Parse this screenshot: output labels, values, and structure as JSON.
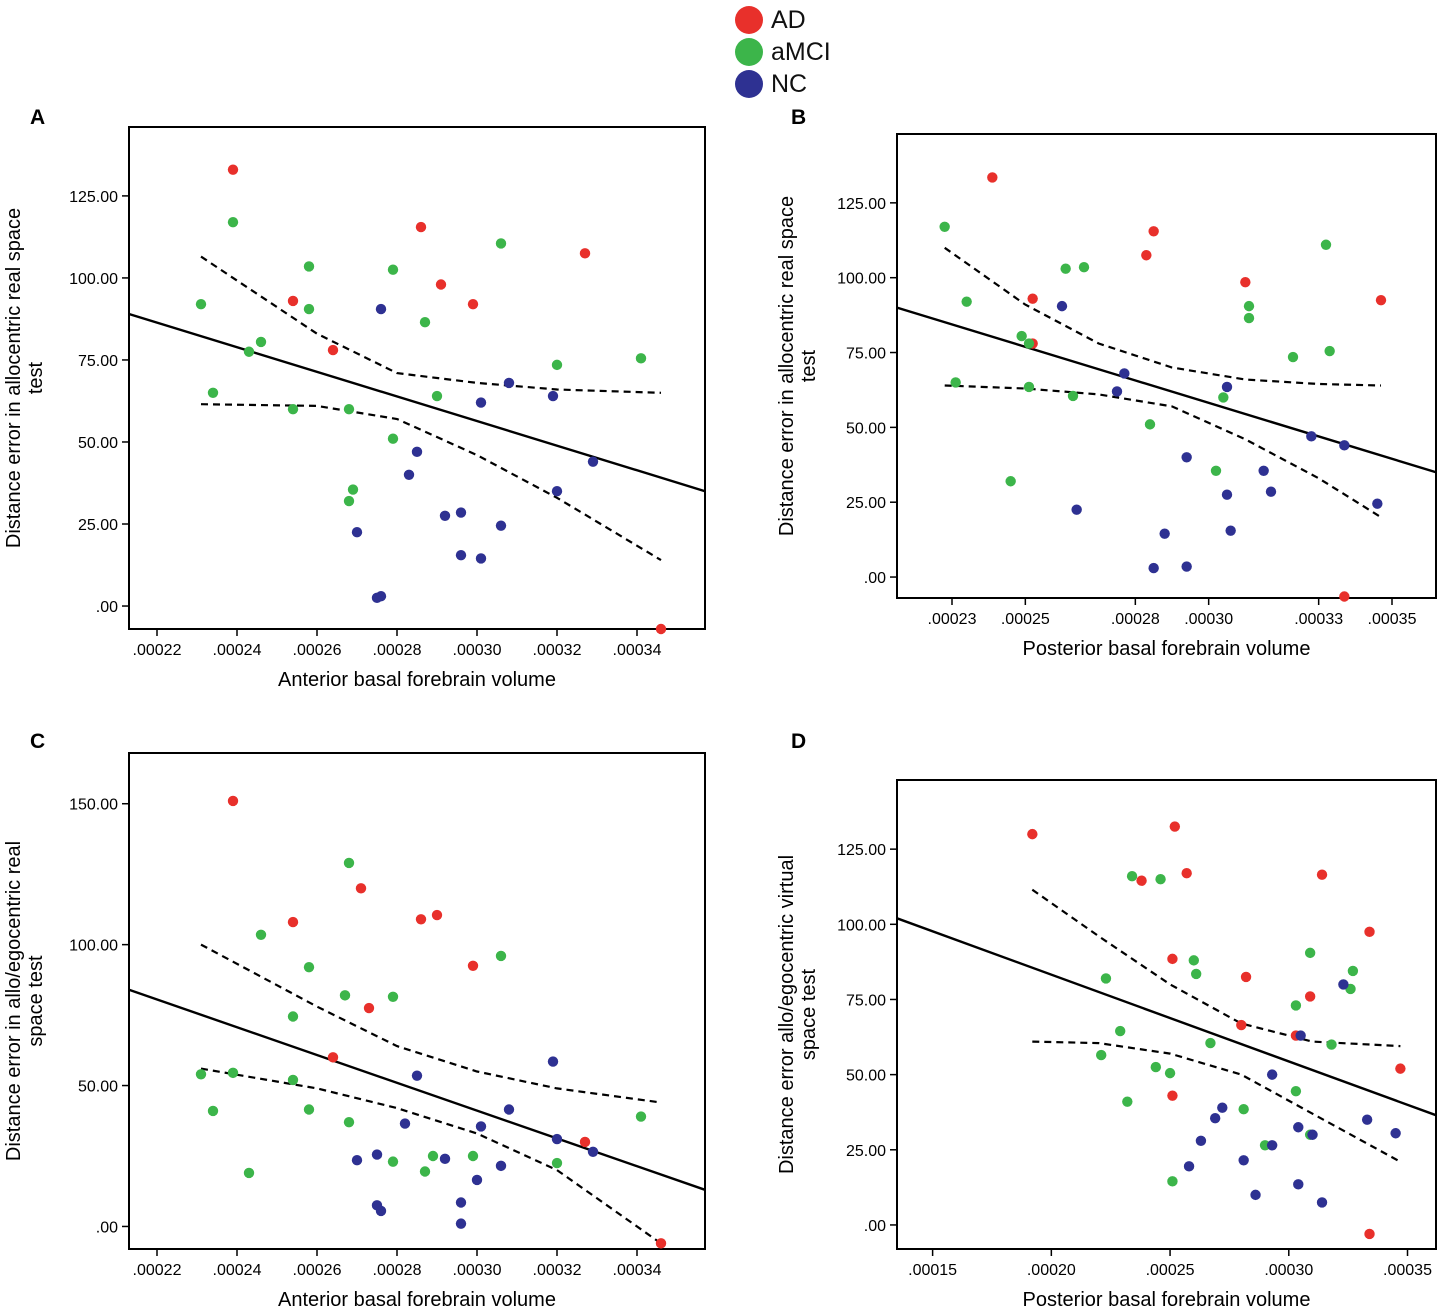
{
  "legend": {
    "items": [
      {
        "label": "AD",
        "color": "#e8302b"
      },
      {
        "label": "aMCI",
        "color": "#3cb54a"
      },
      {
        "label": "NC",
        "color": "#2e3192"
      }
    ]
  },
  "chart_data": [
    {
      "panel": "A",
      "type": "scatter",
      "xlabel": "Anterior basal forebrain volume",
      "ylabel": "Distance error in allocentric real space test",
      "xlim": [
        0.000213,
        0.000357
      ],
      "ylim": [
        -7,
        146
      ],
      "xticks": [
        0.00022,
        0.00024,
        0.00026,
        0.00028,
        0.0003,
        0.00032,
        0.00034
      ],
      "xtick_labels": [
        ".00022",
        ".00024",
        ".00026",
        ".00028",
        ".00030",
        ".00032",
        ".00034"
      ],
      "yticks": [
        0,
        25,
        50,
        75,
        100,
        125
      ],
      "ytick_labels": [
        ".00",
        "25.00",
        "50.00",
        "75.00",
        "100.00",
        "125.00"
      ],
      "fit_line": {
        "x": [
          0.000213,
          0.000357
        ],
        "y": [
          89,
          35
        ]
      },
      "ci_upper": {
        "x": [
          0.000231,
          0.00026,
          0.00028,
          0.0003,
          0.00032,
          0.000346
        ],
        "y": [
          106.5,
          83,
          71,
          68,
          66,
          65
        ]
      },
      "ci_lower": {
        "x": [
          0.000231,
          0.00026,
          0.00028,
          0.0003,
          0.00032,
          0.000346
        ],
        "y": [
          61.5,
          61,
          57,
          46,
          33,
          14
        ]
      },
      "series": [
        {
          "name": "AD",
          "color": "#e8302b",
          "x": [
            0.000239,
            0.000286,
            0.000327,
            0.000291,
            0.000254,
            0.000299,
            0.000264,
            0.000346
          ],
          "y": [
            133,
            115.5,
            107.5,
            98,
            93,
            92,
            78,
            -7
          ]
        },
        {
          "name": "aMCI",
          "color": "#3cb54a",
          "x": [
            0.000239,
            0.000306,
            0.000258,
            0.000279,
            0.000231,
            0.000258,
            0.000287,
            0.000246,
            0.000243,
            0.000341,
            0.00032,
            0.000234,
            0.00029,
            0.000254,
            0.000268,
            0.000279,
            0.000269,
            0.000268
          ],
          "y": [
            117,
            110.5,
            103.5,
            102.5,
            92,
            90.5,
            86.5,
            80.5,
            77.5,
            75.5,
            73.5,
            65,
            64,
            60,
            60,
            51,
            35.5,
            32
          ]
        },
        {
          "name": "NC",
          "color": "#2e3192",
          "x": [
            0.000276,
            0.000308,
            0.000319,
            0.000301,
            0.000329,
            0.000285,
            0.000283,
            0.00032,
            0.00027,
            0.000292,
            0.000296,
            0.000306,
            0.000296,
            0.000301,
            0.000276,
            0.000275
          ],
          "y": [
            90.5,
            68,
            64,
            62,
            44,
            47,
            40,
            35,
            22.5,
            27.5,
            28.5,
            24.5,
            15.5,
            14.5,
            3,
            2.5
          ]
        }
      ]
    },
    {
      "panel": "B",
      "type": "scatter",
      "xlabel": "Posterior basal forebrain volume",
      "ylabel": "Distance error in allocentric real space test",
      "xlim": [
        0.000215,
        0.000362
      ],
      "ylim": [
        -7,
        148
      ],
      "xticks": [
        0.00023,
        0.00025,
        0.00028,
        0.0003,
        0.00033,
        0.00035
      ],
      "xtick_labels": [
        ".00023",
        ".00025",
        ".00028",
        ".00030",
        ".00033",
        ".00035"
      ],
      "yticks": [
        0,
        25,
        50,
        75,
        100,
        125
      ],
      "ytick_labels": [
        ".00",
        "25.00",
        "50.00",
        "75.00",
        "100.00",
        "125.00"
      ],
      "fit_line": {
        "x": [
          0.000215,
          0.000362
        ],
        "y": [
          90,
          35
        ]
      },
      "ci_upper": {
        "x": [
          0.000228,
          0.00025,
          0.00027,
          0.00029,
          0.00031,
          0.00033,
          0.000347
        ],
        "y": [
          110,
          91,
          78,
          70,
          66,
          64.5,
          64
        ]
      },
      "ci_lower": {
        "x": [
          0.000228,
          0.00025,
          0.00027,
          0.00029,
          0.00031,
          0.00033,
          0.000347
        ],
        "y": [
          64,
          63,
          61,
          57,
          46,
          33,
          20
        ]
      },
      "series": [
        {
          "name": "AD",
          "color": "#e8302b",
          "x": [
            0.000241,
            0.000285,
            0.000283,
            0.00031,
            0.000252,
            0.000347,
            0.000252,
            0.000337
          ],
          "y": [
            133.5,
            115.5,
            107.5,
            98.5,
            93,
            92.5,
            78,
            -6.5
          ]
        },
        {
          "name": "aMCI",
          "color": "#3cb54a",
          "x": [
            0.000228,
            0.000332,
            0.000266,
            0.000261,
            0.000234,
            0.000311,
            0.000311,
            0.000249,
            0.000251,
            0.000333,
            0.000323,
            0.000231,
            0.000251,
            0.000263,
            0.000304,
            0.000284,
            0.000302,
            0.000246
          ],
          "y": [
            117,
            111,
            103.5,
            103,
            92,
            90.5,
            86.5,
            80.5,
            78,
            75.5,
            73.5,
            65,
            63.5,
            60.5,
            60,
            51,
            35.5,
            32
          ]
        },
        {
          "name": "NC",
          "color": "#2e3192",
          "x": [
            0.00026,
            0.000277,
            0.000275,
            0.000305,
            0.000328,
            0.000337,
            0.000294,
            0.000315,
            0.000305,
            0.000317,
            0.000346,
            0.000264,
            0.000306,
            0.000288,
            0.000285,
            0.000294
          ],
          "y": [
            90.5,
            68,
            62,
            63.5,
            47,
            44,
            40,
            35.5,
            27.5,
            28.5,
            24.5,
            22.5,
            15.5,
            14.5,
            3,
            3.5
          ]
        }
      ]
    },
    {
      "panel": "C",
      "type": "scatter",
      "xlabel": "Anterior basal forebrain volume",
      "ylabel": "Distance error in allo/egocentric real space test",
      "xlim": [
        0.000213,
        0.000357
      ],
      "ylim": [
        -8,
        168
      ],
      "xticks": [
        0.00022,
        0.00024,
        0.00026,
        0.00028,
        0.0003,
        0.00032,
        0.00034
      ],
      "xtick_labels": [
        ".00022",
        ".00024",
        ".00026",
        ".00028",
        ".00030",
        ".00032",
        ".00034"
      ],
      "yticks": [
        0,
        50,
        100,
        150
      ],
      "ytick_labels": [
        ".00",
        "50.00",
        "100.00",
        "150.00"
      ],
      "fit_line": {
        "x": [
          0.000213,
          0.000357
        ],
        "y": [
          84,
          13
        ]
      },
      "ci_upper": {
        "x": [
          0.000231,
          0.00026,
          0.00028,
          0.0003,
          0.00032,
          0.000346
        ],
        "y": [
          100,
          78,
          64,
          55,
          49,
          44
        ]
      },
      "ci_lower": {
        "x": [
          0.000231,
          0.00026,
          0.00028,
          0.0003,
          0.00032,
          0.000346
        ],
        "y": [
          56,
          49,
          42,
          33,
          20,
          -6
        ]
      },
      "series": [
        {
          "name": "AD",
          "color": "#e8302b",
          "x": [
            0.000239,
            0.000271,
            0.00029,
            0.000286,
            0.000254,
            0.000299,
            0.000273,
            0.000264,
            0.000327,
            0.000346
          ],
          "y": [
            151,
            120,
            110.5,
            109,
            108,
            92.5,
            77.5,
            60,
            30,
            -6
          ]
        },
        {
          "name": "aMCI",
          "color": "#3cb54a",
          "x": [
            0.000268,
            0.000246,
            0.000306,
            0.000258,
            0.000267,
            0.000279,
            0.000254,
            0.000231,
            0.000239,
            0.000254,
            0.000234,
            0.000258,
            0.000341,
            0.000268,
            0.000289,
            0.000299,
            0.000279,
            0.00032,
            0.000287,
            0.000243
          ],
          "y": [
            129,
            103.5,
            96,
            92,
            82,
            81.5,
            74.5,
            54,
            54.5,
            52,
            41,
            41.5,
            39,
            37,
            25,
            25,
            23,
            22.5,
            19.5,
            19
          ]
        },
        {
          "name": "NC",
          "color": "#2e3192",
          "x": [
            0.000319,
            0.000285,
            0.000308,
            0.000301,
            0.00032,
            0.000329,
            0.000282,
            0.000275,
            0.00027,
            0.000292,
            0.000306,
            0.0003,
            0.000275,
            0.000276,
            0.000296,
            0.000296
          ],
          "y": [
            58.5,
            53.5,
            41.5,
            35.5,
            31,
            26.5,
            36.5,
            25.5,
            23.5,
            24,
            21.5,
            16.5,
            7.5,
            5.5,
            8.5,
            1
          ]
        }
      ]
    },
    {
      "panel": "D",
      "type": "scatter",
      "xlabel": "Posterior basal forebrain volume",
      "ylabel": "Distance error allo/egocentric virtual space test",
      "xlim": [
        0.000135,
        0.000362
      ],
      "ylim": [
        -8,
        148
      ],
      "xticks": [
        0.00015,
        0.0002,
        0.00025,
        0.0003,
        0.00035
      ],
      "xtick_labels": [
        ".00015",
        ".00020",
        ".00025",
        ".00030",
        ".00035"
      ],
      "yticks": [
        0,
        25,
        50,
        75,
        100,
        125
      ],
      "ytick_labels": [
        ".00",
        "25.00",
        "50.00",
        "75.00",
        "100.00",
        "125.00"
      ],
      "fit_line": {
        "x": [
          0.000135,
          0.000362
        ],
        "y": [
          102,
          36.5
        ]
      },
      "ci_upper": {
        "x": [
          0.000192,
          0.00022,
          0.00025,
          0.00028,
          0.00031,
          0.000347
        ],
        "y": [
          111.5,
          96,
          80,
          67,
          61,
          59.5
        ]
      },
      "ci_lower": {
        "x": [
          0.000192,
          0.00022,
          0.00025,
          0.00028,
          0.00031,
          0.000347
        ],
        "y": [
          61,
          60.5,
          57,
          50,
          37,
          21
        ]
      },
      "series": [
        {
          "name": "AD",
          "color": "#e8302b",
          "x": [
            0.000192,
            0.000252,
            0.000257,
            0.000314,
            0.000238,
            0.000334,
            0.000251,
            0.000282,
            0.000309,
            0.00028,
            0.000303,
            0.000347,
            0.000251,
            0.000334
          ],
          "y": [
            130,
            132.5,
            117,
            116.5,
            114.5,
            97.5,
            88.5,
            82.5,
            76,
            66.5,
            63,
            52,
            43,
            -3
          ]
        },
        {
          "name": "aMCI",
          "color": "#3cb54a",
          "x": [
            0.000234,
            0.000246,
            0.000223,
            0.00026,
            0.000261,
            0.000309,
            0.000327,
            0.000303,
            0.000326,
            0.000229,
            0.000267,
            0.000318,
            0.000221,
            0.000244,
            0.00025,
            0.000303,
            0.000232,
            0.000281,
            0.00029,
            0.000309,
            0.000251
          ],
          "y": [
            116,
            115,
            82,
            88,
            83.5,
            90.5,
            84.5,
            73,
            78.5,
            64.5,
            60.5,
            60,
            56.5,
            52.5,
            50.5,
            44.5,
            41,
            38.5,
            26.5,
            30,
            14.5
          ]
        },
        {
          "name": "NC",
          "color": "#2e3192",
          "x": [
            0.000323,
            0.000305,
            0.000293,
            0.000272,
            0.000269,
            0.000333,
            0.000304,
            0.00031,
            0.000345,
            0.000263,
            0.000293,
            0.000281,
            0.000258,
            0.000304,
            0.000286,
            0.000314
          ],
          "y": [
            80,
            63,
            50,
            39,
            35.5,
            35,
            32.5,
            30,
            30.5,
            28,
            26.5,
            21.5,
            19.5,
            13.5,
            10,
            7.5
          ]
        }
      ]
    }
  ]
}
